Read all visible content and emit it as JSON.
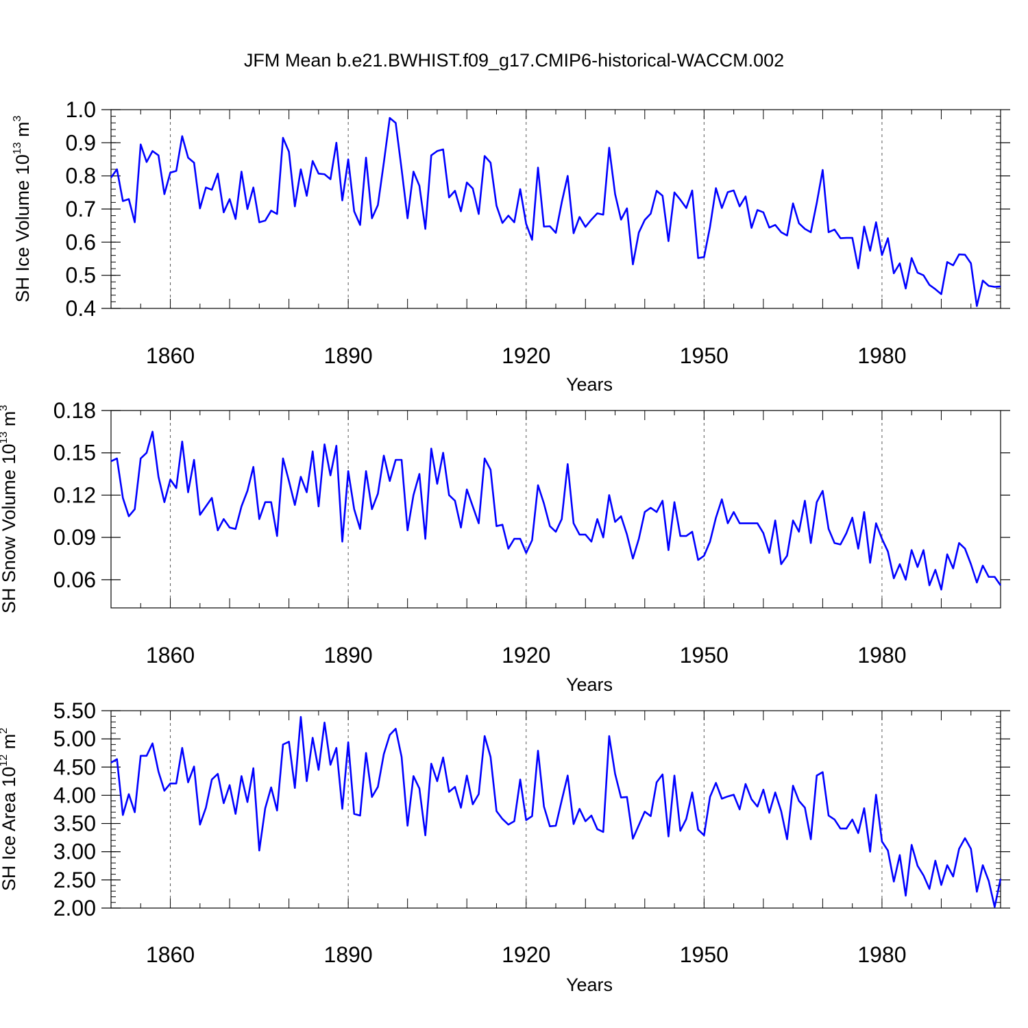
{
  "figure_title": "JFM Mean b.e21.BWHIST.f09_g17.CMIP6-historical-WACCM.002",
  "line_color": "#0000ff",
  "chart_data": [
    {
      "type": "line",
      "title": "JFM Mean b.e21.BWHIST.f09_g17.CMIP6-historical-WACCM.002",
      "xlabel": "Years",
      "ylabel": {
        "text": "SH Ice Volume 10",
        "exp": "13",
        "unit": " m",
        "unit_exp": "3"
      },
      "xlim": [
        1850,
        2000
      ],
      "ylim": [
        0.4,
        1.0
      ],
      "yticks": [
        0.4,
        0.5,
        0.6,
        0.7,
        0.8,
        0.9,
        1.0
      ],
      "ytick_labels": [
        "0.4",
        "0.5",
        "0.6",
        "0.7",
        "0.8",
        "0.9",
        "1.0"
      ],
      "ytick_minor_step": 0.02,
      "xticks": [
        1860,
        1890,
        1920,
        1950,
        1980
      ],
      "xtick_labels": [
        "1860",
        "1890",
        "1920",
        "1950",
        "1980"
      ],
      "grid": "x-dashed",
      "x_start": 1850,
      "values": [
        0.795,
        0.82,
        0.724,
        0.73,
        0.66,
        0.895,
        0.842,
        0.875,
        0.862,
        0.745,
        0.81,
        0.815,
        0.92,
        0.855,
        0.84,
        0.702,
        0.765,
        0.758,
        0.807,
        0.69,
        0.73,
        0.67,
        0.813,
        0.7,
        0.765,
        0.66,
        0.665,
        0.695,
        0.685,
        0.915,
        0.873,
        0.708,
        0.82,
        0.74,
        0.845,
        0.807,
        0.805,
        0.79,
        0.9,
        0.726,
        0.85,
        0.693,
        0.652,
        0.855,
        0.672,
        0.712,
        0.84,
        0.975,
        0.96,
        0.82,
        0.672,
        0.813,
        0.77,
        0.64,
        0.862,
        0.875,
        0.88,
        0.735,
        0.755,
        0.693,
        0.78,
        0.762,
        0.685,
        0.86,
        0.84,
        0.71,
        0.658,
        0.68,
        0.66,
        0.76,
        0.655,
        0.607,
        0.825,
        0.647,
        0.648,
        0.628,
        0.72,
        0.8,
        0.627,
        0.676,
        0.646,
        0.668,
        0.687,
        0.683,
        0.885,
        0.745,
        0.668,
        0.702,
        0.533,
        0.629,
        0.667,
        0.686,
        0.755,
        0.74,
        0.603,
        0.75,
        0.728,
        0.703,
        0.756,
        0.552,
        0.555,
        0.646,
        0.763,
        0.703,
        0.751,
        0.756,
        0.708,
        0.738,
        0.643,
        0.697,
        0.69,
        0.644,
        0.652,
        0.63,
        0.62,
        0.717,
        0.657,
        0.64,
        0.63,
        0.718,
        0.818,
        0.63,
        0.638,
        0.612,
        0.613,
        0.613,
        0.521,
        0.647,
        0.574,
        0.66,
        0.561,
        0.612,
        0.506,
        0.536,
        0.46,
        0.552,
        0.508,
        0.5,
        0.471,
        0.458,
        0.443,
        0.54,
        0.53,
        0.563,
        0.562,
        0.536,
        0.407,
        0.484,
        0.468,
        0.465,
        0.466
      ]
    },
    {
      "type": "line",
      "xlabel": "Years",
      "ylabel": {
        "text": "SH Snow Volume 10",
        "exp": "13",
        "unit": " m",
        "unit_exp": "3"
      },
      "xlim": [
        1850,
        2000
      ],
      "ylim": [
        0.04,
        0.18
      ],
      "yticks": [
        0.06,
        0.09,
        0.12,
        0.15,
        0.18
      ],
      "ytick_labels": [
        "0.06",
        "0.09",
        "0.12",
        "0.15",
        "0.18"
      ],
      "ytick_minor_step": null,
      "xticks": [
        1860,
        1890,
        1920,
        1950,
        1980
      ],
      "xtick_labels": [
        "1860",
        "1890",
        "1920",
        "1950",
        "1980"
      ],
      "grid": "x-dashed",
      "x_start": 1850,
      "values": [
        0.144,
        0.146,
        0.118,
        0.105,
        0.11,
        0.146,
        0.15,
        0.165,
        0.133,
        0.115,
        0.131,
        0.125,
        0.158,
        0.122,
        0.145,
        0.106,
        0.112,
        0.118,
        0.095,
        0.103,
        0.097,
        0.096,
        0.112,
        0.123,
        0.14,
        0.103,
        0.115,
        0.115,
        0.091,
        0.146,
        0.13,
        0.113,
        0.133,
        0.122,
        0.151,
        0.112,
        0.156,
        0.134,
        0.155,
        0.087,
        0.137,
        0.11,
        0.096,
        0.137,
        0.11,
        0.121,
        0.148,
        0.13,
        0.145,
        0.145,
        0.095,
        0.12,
        0.135,
        0.089,
        0.153,
        0.128,
        0.15,
        0.12,
        0.116,
        0.097,
        0.124,
        0.112,
        0.1,
        0.146,
        0.138,
        0.098,
        0.099,
        0.082,
        0.089,
        0.089,
        0.079,
        0.088,
        0.127,
        0.114,
        0.098,
        0.094,
        0.103,
        0.142,
        0.1,
        0.092,
        0.092,
        0.087,
        0.103,
        0.09,
        0.12,
        0.101,
        0.105,
        0.092,
        0.075,
        0.089,
        0.108,
        0.111,
        0.108,
        0.116,
        0.081,
        0.115,
        0.091,
        0.091,
        0.094,
        0.074,
        0.077,
        0.087,
        0.104,
        0.117,
        0.1,
        0.108,
        0.1,
        0.1,
        0.1,
        0.1,
        0.093,
        0.079,
        0.102,
        0.071,
        0.077,
        0.102,
        0.094,
        0.116,
        0.086,
        0.115,
        0.123,
        0.096,
        0.086,
        0.085,
        0.093,
        0.104,
        0.082,
        0.108,
        0.072,
        0.1,
        0.089,
        0.08,
        0.061,
        0.071,
        0.06,
        0.081,
        0.069,
        0.081,
        0.056,
        0.067,
        0.053,
        0.078,
        0.068,
        0.086,
        0.082,
        0.071,
        0.058,
        0.07,
        0.062,
        0.062,
        0.056
      ]
    },
    {
      "type": "line",
      "xlabel": "Years",
      "ylabel": {
        "text": "SH Ice Area 10",
        "exp": "12",
        "unit": " m",
        "unit_exp": "2"
      },
      "xlim": [
        1850,
        2000
      ],
      "ylim": [
        2.0,
        5.5
      ],
      "yticks": [
        2.0,
        2.5,
        3.0,
        3.5,
        4.0,
        4.5,
        5.0,
        5.5
      ],
      "ytick_labels": [
        "2.00",
        "2.50",
        "3.00",
        "3.50",
        "4.00",
        "4.50",
        "5.00",
        "5.50"
      ],
      "ytick_minor_step": 0.1,
      "xticks": [
        1860,
        1890,
        1920,
        1950,
        1980
      ],
      "xtick_labels": [
        "1860",
        "1890",
        "1920",
        "1950",
        "1980"
      ],
      "grid": "x-dashed",
      "x_start": 1850,
      "values": [
        4.58,
        4.64,
        3.65,
        4.02,
        3.7,
        4.7,
        4.7,
        4.92,
        4.42,
        4.08,
        4.21,
        4.21,
        4.84,
        4.23,
        4.51,
        3.48,
        3.78,
        4.28,
        4.38,
        3.86,
        4.18,
        3.67,
        4.34,
        3.88,
        4.48,
        3.02,
        3.77,
        4.14,
        3.73,
        4.9,
        4.95,
        4.13,
        5.39,
        4.25,
        5.02,
        4.45,
        5.29,
        4.54,
        4.84,
        3.76,
        4.94,
        3.67,
        3.64,
        4.75,
        3.97,
        4.15,
        4.73,
        5.07,
        5.18,
        4.68,
        3.46,
        4.34,
        4.12,
        3.29,
        4.56,
        4.25,
        4.67,
        4.06,
        4.15,
        3.78,
        4.35,
        3.84,
        4.02,
        5.05,
        4.68,
        3.72,
        3.58,
        3.48,
        3.54,
        4.28,
        3.56,
        3.63,
        4.79,
        3.8,
        3.45,
        3.46,
        3.91,
        4.35,
        3.49,
        3.76,
        3.54,
        3.64,
        3.4,
        3.35,
        5.05,
        4.38,
        3.96,
        3.97,
        3.23,
        3.47,
        3.71,
        3.63,
        4.23,
        4.37,
        3.27,
        4.35,
        3.37,
        3.58,
        4.05,
        3.39,
        3.29,
        3.97,
        4.22,
        3.94,
        3.98,
        4.01,
        3.75,
        4.2,
        3.93,
        3.8,
        4.1,
        3.69,
        4.05,
        3.72,
        3.22,
        4.17,
        3.9,
        3.78,
        3.22,
        4.35,
        4.41,
        3.64,
        3.57,
        3.41,
        3.41,
        3.57,
        3.33,
        3.77,
        3.0,
        4.01,
        3.18,
        3.02,
        2.47,
        2.94,
        2.22,
        3.12,
        2.75,
        2.58,
        2.34,
        2.84,
        2.41,
        2.76,
        2.56,
        3.05,
        3.24,
        3.05,
        2.29,
        2.76,
        2.48,
        2.02,
        2.52
      ]
    }
  ]
}
